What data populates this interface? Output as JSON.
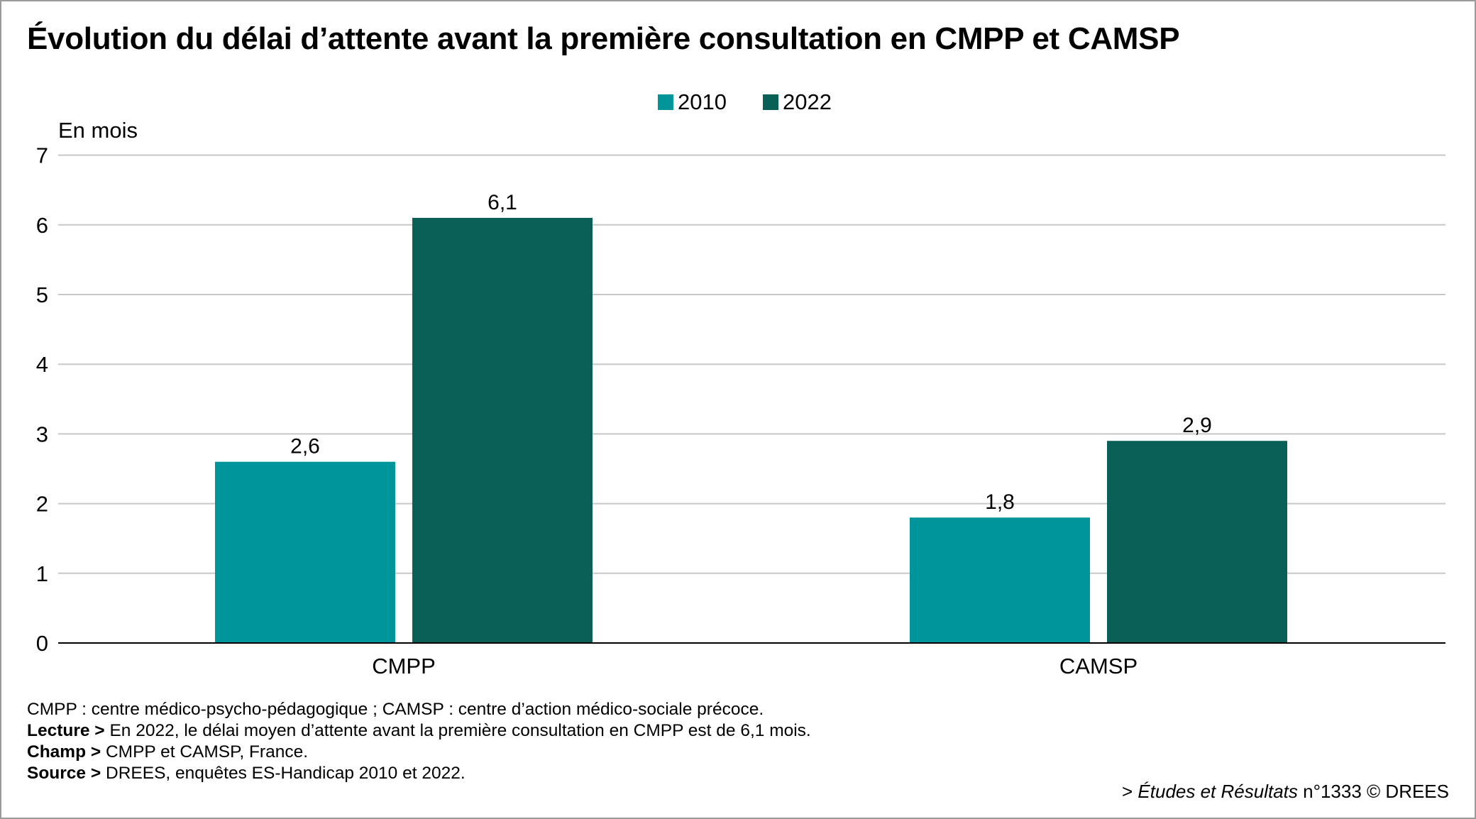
{
  "title": "Évolution du délai d’attente avant la première consultation en CMPP et CAMSP",
  "colors": {
    "s2010": "#00959b",
    "s2022": "#0a5f56",
    "grid": "#c8c8c8",
    "axis": "#000000"
  },
  "chart_data": {
    "type": "bar",
    "title": "Évolution du délai d’attente avant la première consultation en CMPP et CAMSP",
    "ylabel": "En mois",
    "xlabel": "",
    "ylim": [
      0,
      7
    ],
    "yticks": [
      "0",
      "1",
      "2",
      "3",
      "4",
      "5",
      "6",
      "7"
    ],
    "grid": true,
    "legend_position": "top-center",
    "categories": [
      "CMPP",
      "CAMSP"
    ],
    "series": [
      {
        "name": "2010",
        "values": [
          2.6,
          1.8
        ],
        "labels": [
          "2,6",
          "1,8"
        ]
      },
      {
        "name": "2022",
        "values": [
          6.1,
          2.9
        ],
        "labels": [
          "6,1",
          "2,9"
        ]
      }
    ]
  },
  "notes": {
    "definitions": "CMPP : centre médico-psycho-pédagogique ; CAMSP : centre d’action médico-sociale précoce.",
    "lecture_label": "Lecture >",
    "lecture_text": "En 2022, le délai moyen d’attente avant la première consultation en CMPP est de 6,1 mois.",
    "champ_label": "Champ >",
    "champ_text": "CMPP et CAMSP, France.",
    "source_label": "Source >",
    "source_text": "DREES, enquêtes ES-Handicap 2010 et 2022."
  },
  "credit": {
    "prefix": "> ",
    "publication": "Études et Résultats",
    "suffix": " n°1333 © DREES"
  }
}
